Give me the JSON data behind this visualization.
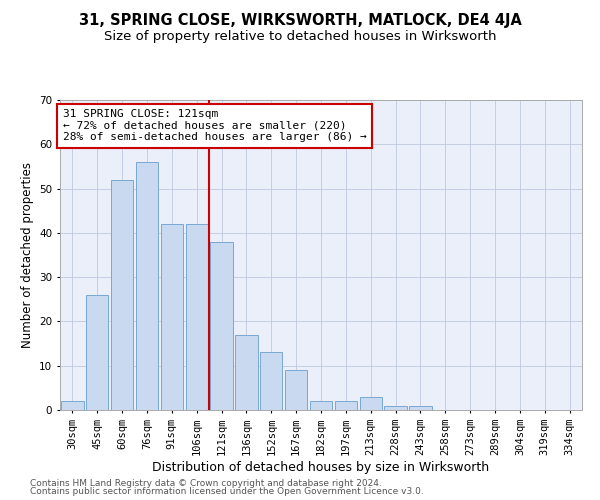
{
  "title": "31, SPRING CLOSE, WIRKSWORTH, MATLOCK, DE4 4JA",
  "subtitle": "Size of property relative to detached houses in Wirksworth",
  "xlabel": "Distribution of detached houses by size in Wirksworth",
  "ylabel": "Number of detached properties",
  "categories": [
    "30sqm",
    "45sqm",
    "60sqm",
    "76sqm",
    "91sqm",
    "106sqm",
    "121sqm",
    "136sqm",
    "152sqm",
    "167sqm",
    "182sqm",
    "197sqm",
    "213sqm",
    "228sqm",
    "243sqm",
    "258sqm",
    "273sqm",
    "289sqm",
    "304sqm",
    "319sqm",
    "334sqm"
  ],
  "values": [
    2,
    26,
    52,
    56,
    42,
    42,
    38,
    17,
    13,
    9,
    2,
    2,
    3,
    1,
    1,
    0,
    0,
    0,
    0,
    0,
    0
  ],
  "bar_color": "#c9d9f0",
  "bar_edge_color": "#7aa8d4",
  "highlight_index": 6,
  "highlight_line_color": "#cc0000",
  "annotation_line1": "31 SPRING CLOSE: 121sqm",
  "annotation_line2": "← 72% of detached houses are smaller (220)",
  "annotation_line3": "28% of semi-detached houses are larger (86) →",
  "annotation_box_color": "#ffffff",
  "annotation_box_edge": "#cc0000",
  "ylim": [
    0,
    70
  ],
  "yticks": [
    0,
    10,
    20,
    30,
    40,
    50,
    60,
    70
  ],
  "background_color": "#eaeff9",
  "footer_line1": "Contains HM Land Registry data © Crown copyright and database right 2024.",
  "footer_line2": "Contains public sector information licensed under the Open Government Licence v3.0.",
  "title_fontsize": 10.5,
  "subtitle_fontsize": 9.5,
  "xlabel_fontsize": 9,
  "ylabel_fontsize": 8.5,
  "tick_fontsize": 7.5,
  "annotation_fontsize": 8,
  "footer_fontsize": 6.5
}
